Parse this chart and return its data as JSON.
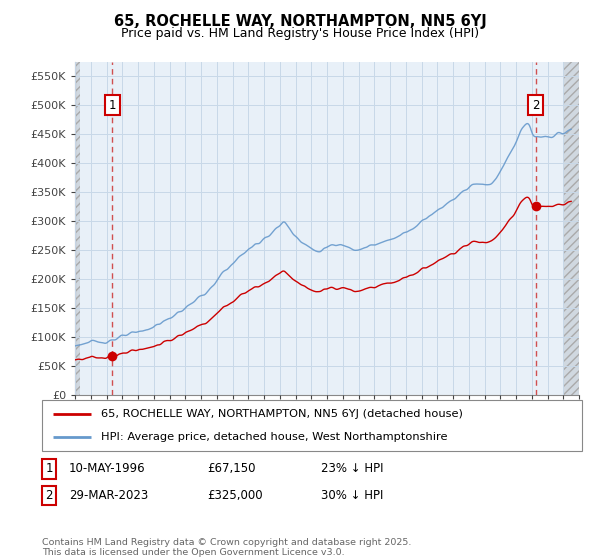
{
  "title1": "65, ROCHELLE WAY, NORTHAMPTON, NN5 6YJ",
  "title2": "Price paid vs. HM Land Registry's House Price Index (HPI)",
  "ylabel_ticks": [
    "£0",
    "£50K",
    "£100K",
    "£150K",
    "£200K",
    "£250K",
    "£300K",
    "£350K",
    "£400K",
    "£450K",
    "£500K",
    "£550K"
  ],
  "ylim": [
    0,
    575000
  ],
  "xlim_start": 1994,
  "xlim_end": 2026,
  "marker1_x": 1996.36,
  "marker1_y": 67150,
  "marker2_x": 2023.24,
  "marker2_y": 325000,
  "marker1_label": "1",
  "marker2_label": "2",
  "line1_color": "#cc0000",
  "line2_color": "#6699cc",
  "grid_color": "#c8d8e8",
  "plot_bg": "#e8f0f8",
  "hatch_bg": "#d8d8d8",
  "legend1": "65, ROCHELLE WAY, NORTHAMPTON, NN5 6YJ (detached house)",
  "legend2": "HPI: Average price, detached house, West Northamptonshire",
  "note1_date": "10-MAY-1996",
  "note1_price": "£67,150",
  "note1_hpi": "23% ↓ HPI",
  "note2_date": "29-MAR-2023",
  "note2_price": "£325,000",
  "note2_hpi": "30% ↓ HPI",
  "footer": "Contains HM Land Registry data © Crown copyright and database right 2025.\nThis data is licensed under the Open Government Licence v3.0."
}
